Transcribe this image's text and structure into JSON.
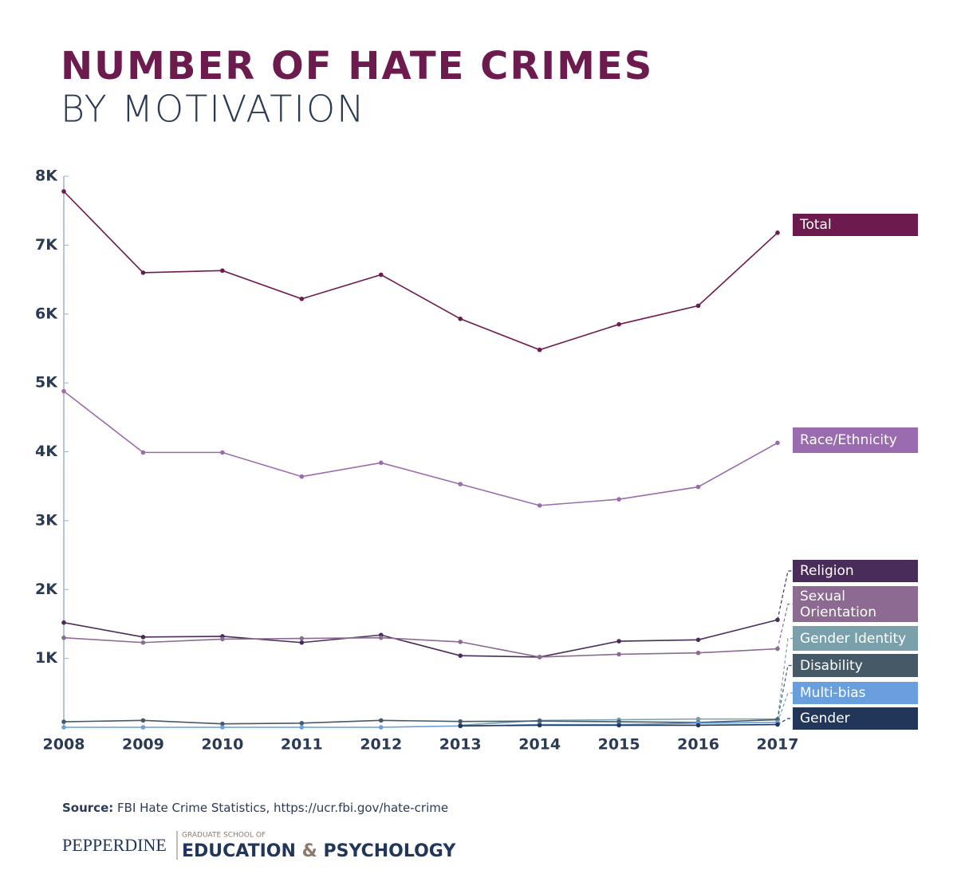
{
  "chart_data": {
    "type": "line",
    "title": "NUMBER OF HATE CRIMES",
    "subtitle": "BY MOTIVATION",
    "x": [
      2008,
      2009,
      2010,
      2011,
      2012,
      2013,
      2014,
      2015,
      2016,
      2017
    ],
    "xlim": [
      2008,
      2017
    ],
    "xticks": [
      2008,
      2009,
      2010,
      2011,
      2012,
      2013,
      2014,
      2015,
      2016,
      2017
    ],
    "ylim": [
      0,
      8000
    ],
    "yticks": [
      {
        "value": 1000,
        "label": "1K"
      },
      {
        "value": 2000,
        "label": "2K"
      },
      {
        "value": 3000,
        "label": "3K"
      },
      {
        "value": 4000,
        "label": "4K"
      },
      {
        "value": 5000,
        "label": "5K"
      },
      {
        "value": 6000,
        "label": "6K"
      },
      {
        "value": 7000,
        "label": "7K"
      },
      {
        "value": 8000,
        "label": "8K"
      }
    ],
    "series": [
      {
        "name": "Total",
        "color": "#6d1a4f",
        "values": [
          7780,
          6600,
          6630,
          6220,
          6570,
          5930,
          5480,
          5850,
          6120,
          7180
        ]
      },
      {
        "name": "Race/Ethnicity",
        "color": "#9b6bb0",
        "values": [
          4880,
          3990,
          3990,
          3640,
          3840,
          3530,
          3220,
          3310,
          3490,
          4130
        ]
      },
      {
        "name": "Religion",
        "color": "#4a2c5a",
        "values": [
          1520,
          1310,
          1320,
          1230,
          1340,
          1040,
          1020,
          1250,
          1270,
          1560
        ]
      },
      {
        "name": "Sexual Orientation",
        "color": "#8d6a91",
        "values": [
          1300,
          1230,
          1280,
          1290,
          1300,
          1240,
          1020,
          1060,
          1080,
          1140
        ]
      },
      {
        "name": "Gender Identity",
        "color": "#7aa0ac",
        "values": [
          null,
          null,
          null,
          null,
          null,
          30,
          100,
          110,
          120,
          120
        ]
      },
      {
        "name": "Disability",
        "color": "#455a66",
        "values": [
          80,
          100,
          50,
          60,
          100,
          85,
          90,
          80,
          70,
          110
        ]
      },
      {
        "name": "Multi-bias",
        "color": "#6a9fdd",
        "values": [
          0,
          0,
          0,
          0,
          0,
          20,
          40,
          40,
          60,
          70
        ]
      },
      {
        "name": "Gender",
        "color": "#22365a",
        "values": [
          null,
          null,
          null,
          null,
          null,
          20,
          30,
          30,
          30,
          40
        ]
      }
    ]
  },
  "footer": {
    "source_label": "Source:",
    "source_text": "FBI Hate Crime Statistics, https://ucr.fbi.gov/hate-crime"
  },
  "logo": {
    "name": "PEPPERDINE",
    "school": "GRADUATE SCHOOL OF",
    "part1": "EDUCATION",
    "amp": "&",
    "part2": "PSYCHOLOGY"
  }
}
